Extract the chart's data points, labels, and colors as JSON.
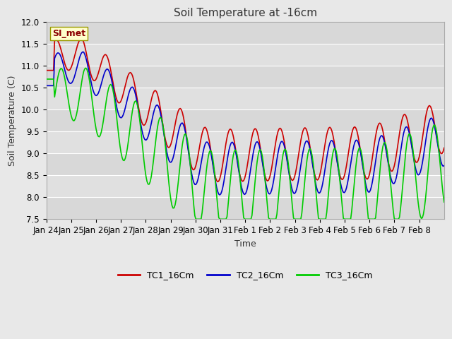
{
  "title": "Soil Temperature at -16cm",
  "xlabel": "Time",
  "ylabel": "Soil Temperature (C)",
  "ylim": [
    7.5,
    12.0
  ],
  "yticks": [
    7.5,
    8.0,
    8.5,
    9.0,
    9.5,
    10.0,
    10.5,
    11.0,
    11.5,
    12.0
  ],
  "x_labels": [
    "Jan 24",
    "Jan 25",
    "Jan 26",
    "Jan 27",
    "Jan 28",
    "Jan 29",
    "Jan 30",
    "Jan 31",
    "Feb 1",
    "Feb 2",
    "Feb 3",
    "Feb 4",
    "Feb 5",
    "Feb 6",
    "Feb 7",
    "Feb 8"
  ],
  "line_colors": [
    "#cc0000",
    "#0000cc",
    "#00cc00"
  ],
  "line_width": 1.2,
  "legend_labels": [
    "TC1_16Cm",
    "TC2_16Cm",
    "TC3_16Cm"
  ],
  "annotation_text": "SI_met",
  "bg_bands": [
    "#d8d8d8",
    "#e0e0e0"
  ],
  "fig_bg": "#e8e8e8",
  "title_fontsize": 11,
  "label_fontsize": 9,
  "tick_fontsize": 8.5
}
